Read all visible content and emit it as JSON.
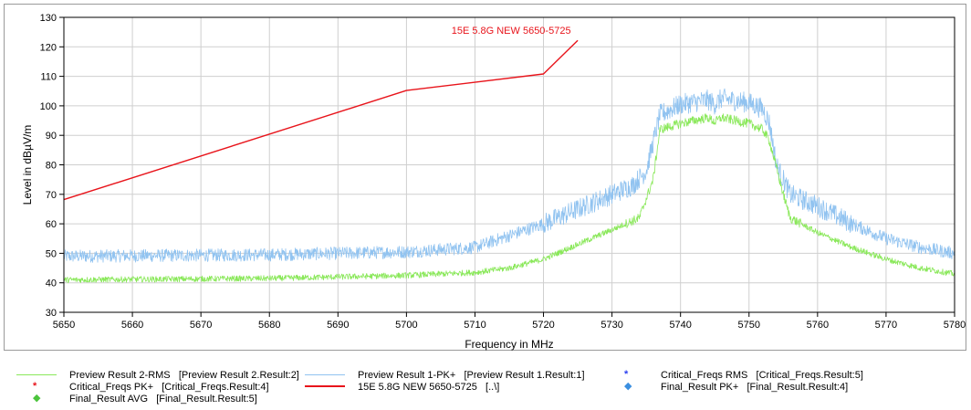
{
  "colors": {
    "limit": "#e8141b",
    "pk": "#91c3f0",
    "rms": "#8ae85a",
    "grid": "#cfcfcf",
    "axis": "#000000",
    "marker_red": "#e8141b",
    "marker_blue": "#2a3ff0",
    "marker_green": "#4cc43c",
    "marker_lightblue": "#3b8fe0"
  },
  "chart_data": {
    "type": "line",
    "title": "",
    "xlabel": "Frequency in MHz",
    "ylabel": "Level in dBµV/m",
    "xlim": [
      5650,
      5780
    ],
    "ylim": [
      30,
      130
    ],
    "xticks": [
      "5650",
      "5660",
      "5670",
      "5680",
      "5690",
      "5700",
      "5710",
      "5720",
      "5730",
      "5740",
      "5750",
      "5760",
      "5770",
      "5780"
    ],
    "yticks": [
      "30",
      "40",
      "50",
      "60",
      "70",
      "80",
      "90",
      "100",
      "110",
      "120",
      "130"
    ],
    "grid": true,
    "series": [
      {
        "name": "Preview Result 1-PK+",
        "color_key": "pk",
        "noise": 2.2,
        "points": [
          [
            5650,
            49
          ],
          [
            5680,
            49.5
          ],
          [
            5700,
            50.5
          ],
          [
            5710,
            52
          ],
          [
            5715,
            56
          ],
          [
            5720,
            60
          ],
          [
            5725,
            65
          ],
          [
            5730,
            70
          ],
          [
            5733,
            73
          ],
          [
            5735,
            78
          ],
          [
            5737,
            97
          ],
          [
            5740,
            100.5
          ],
          [
            5744,
            102
          ],
          [
            5745,
            100.5
          ],
          [
            5746,
            102.5
          ],
          [
            5750,
            101
          ],
          [
            5752,
            99
          ],
          [
            5753,
            94
          ],
          [
            5754,
            80
          ],
          [
            5756,
            70
          ],
          [
            5760,
            66
          ],
          [
            5765,
            60
          ],
          [
            5770,
            55
          ],
          [
            5775,
            52
          ],
          [
            5780,
            50
          ]
        ]
      },
      {
        "name": "Preview Result 2-RMS",
        "color_key": "rms",
        "noise": 1.0,
        "points": [
          [
            5650,
            41
          ],
          [
            5680,
            41.5
          ],
          [
            5700,
            42.5
          ],
          [
            5710,
            43.5
          ],
          [
            5715,
            45
          ],
          [
            5720,
            48
          ],
          [
            5725,
            53
          ],
          [
            5730,
            58
          ],
          [
            5734,
            62
          ],
          [
            5736,
            75
          ],
          [
            5737,
            92
          ],
          [
            5740,
            94
          ],
          [
            5744,
            96
          ],
          [
            5745,
            94.5
          ],
          [
            5746,
            96
          ],
          [
            5750,
            94
          ],
          [
            5752,
            92
          ],
          [
            5753,
            88
          ],
          [
            5755,
            70
          ],
          [
            5756,
            62
          ],
          [
            5760,
            57
          ],
          [
            5765,
            52
          ],
          [
            5770,
            48
          ],
          [
            5775,
            45
          ],
          [
            5780,
            43
          ]
        ]
      },
      {
        "name": "15E 5.8G NEW 5650-5725",
        "color_key": "limit",
        "noise": 0,
        "points": [
          [
            5650,
            68.2
          ],
          [
            5700,
            105.2
          ],
          [
            5720,
            110.8
          ],
          [
            5725,
            122.2
          ]
        ]
      }
    ],
    "annotations": [
      {
        "text": "15E 5.8G NEW 5650-5725",
        "x": 5724,
        "y": 124.5,
        "color_key": "limit"
      }
    ]
  },
  "legend": {
    "items": [
      {
        "name": "Preview Result 2-RMS",
        "ref": "[Preview Result 2.Result:2]",
        "symbol": "line",
        "color_key": "rms"
      },
      {
        "name": "Preview Result 1-PK+",
        "ref": "[Preview Result 1.Result:1]",
        "symbol": "line",
        "color_key": "pk"
      },
      {
        "name": "Critical_Freqs RMS",
        "ref": "[Critical_Freqs.Result:5]",
        "symbol": "*",
        "color_key": "marker_blue"
      },
      {
        "name": "Critical_Freqs PK+",
        "ref": "[Critical_Freqs.Result:4]",
        "symbol": "*",
        "color_key": "marker_red"
      },
      {
        "name": "15E 5.8G NEW 5650-5725",
        "ref": "[..\\]",
        "symbol": "thickline",
        "color_key": "limit"
      },
      {
        "name": "Final_Result PK+",
        "ref": "[Final_Result.Result:4]",
        "symbol": "◆",
        "color_key": "marker_lightblue"
      },
      {
        "name": "Final_Result AVG",
        "ref": "[Final_Result.Result:5]",
        "symbol": "◆",
        "color_key": "marker_green"
      }
    ]
  }
}
